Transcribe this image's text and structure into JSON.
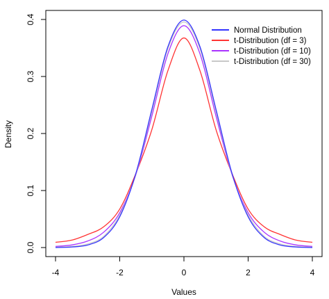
{
  "chart_data": {
    "type": "line",
    "title": "",
    "xlabel": "Values",
    "ylabel": "Density",
    "xlim": [
      -4,
      4
    ],
    "ylim": [
      0,
      0.4
    ],
    "x_ticks": [
      "-4",
      "-2",
      "0",
      "2",
      "4"
    ],
    "y_ticks": [
      "0.0",
      "0.1",
      "0.2",
      "0.3",
      "0.4"
    ],
    "grid": false,
    "legend_position": "top-right",
    "series": [
      {
        "name": "Normal Distribution",
        "color": "#3333ff",
        "x": [
          -4,
          -3.5,
          -3,
          -2.5,
          -2,
          -1.5,
          -1,
          -0.5,
          0,
          0.5,
          1,
          1.5,
          2,
          2.5,
          3,
          3.5,
          4
        ],
        "values": [
          0.0001,
          0.0009,
          0.0044,
          0.0175,
          0.054,
          0.1295,
          0.242,
          0.3521,
          0.3989,
          0.3521,
          0.242,
          0.1295,
          0.054,
          0.0175,
          0.0044,
          0.0009,
          0.0001
        ]
      },
      {
        "name": "t-Distribution (df = 3)",
        "color": "#ff3333",
        "x": [
          -4,
          -3.5,
          -3,
          -2.5,
          -2,
          -1.5,
          -1,
          -0.5,
          0,
          0.5,
          1,
          1.5,
          2,
          2.5,
          3,
          3.5,
          4
        ],
        "values": [
          0.0092,
          0.0129,
          0.0229,
          0.0364,
          0.0675,
          0.1296,
          0.2067,
          0.3101,
          0.3676,
          0.3101,
          0.2067,
          0.1296,
          0.0675,
          0.0364,
          0.0229,
          0.0129,
          0.0092
        ]
      },
      {
        "name": "t-Distribution (df = 10)",
        "color": "#aa33ff",
        "x": [
          -4,
          -3.5,
          -3,
          -2.5,
          -2,
          -1.5,
          -1,
          -0.5,
          0,
          0.5,
          1,
          1.5,
          2,
          2.5,
          3,
          3.5,
          4
        ],
        "values": [
          0.002,
          0.0045,
          0.0114,
          0.0269,
          0.0611,
          0.1274,
          0.2304,
          0.3397,
          0.3891,
          0.3397,
          0.2304,
          0.1274,
          0.0611,
          0.0269,
          0.0114,
          0.0045,
          0.002
        ]
      },
      {
        "name": "t-Distribution (df = 30)",
        "color": "#c8c8c8",
        "x": [
          -4,
          -3.5,
          -3,
          -2.5,
          -2,
          -1.5,
          -1,
          -0.5,
          0,
          0.5,
          1,
          1.5,
          2,
          2.5,
          3,
          3.5,
          4
        ],
        "values": [
          0.0007,
          0.0019,
          0.0062,
          0.0196,
          0.0572,
          0.1283,
          0.2381,
          0.3484,
          0.3956,
          0.3484,
          0.2381,
          0.1283,
          0.0572,
          0.0196,
          0.0062,
          0.0019,
          0.0007
        ]
      }
    ]
  }
}
